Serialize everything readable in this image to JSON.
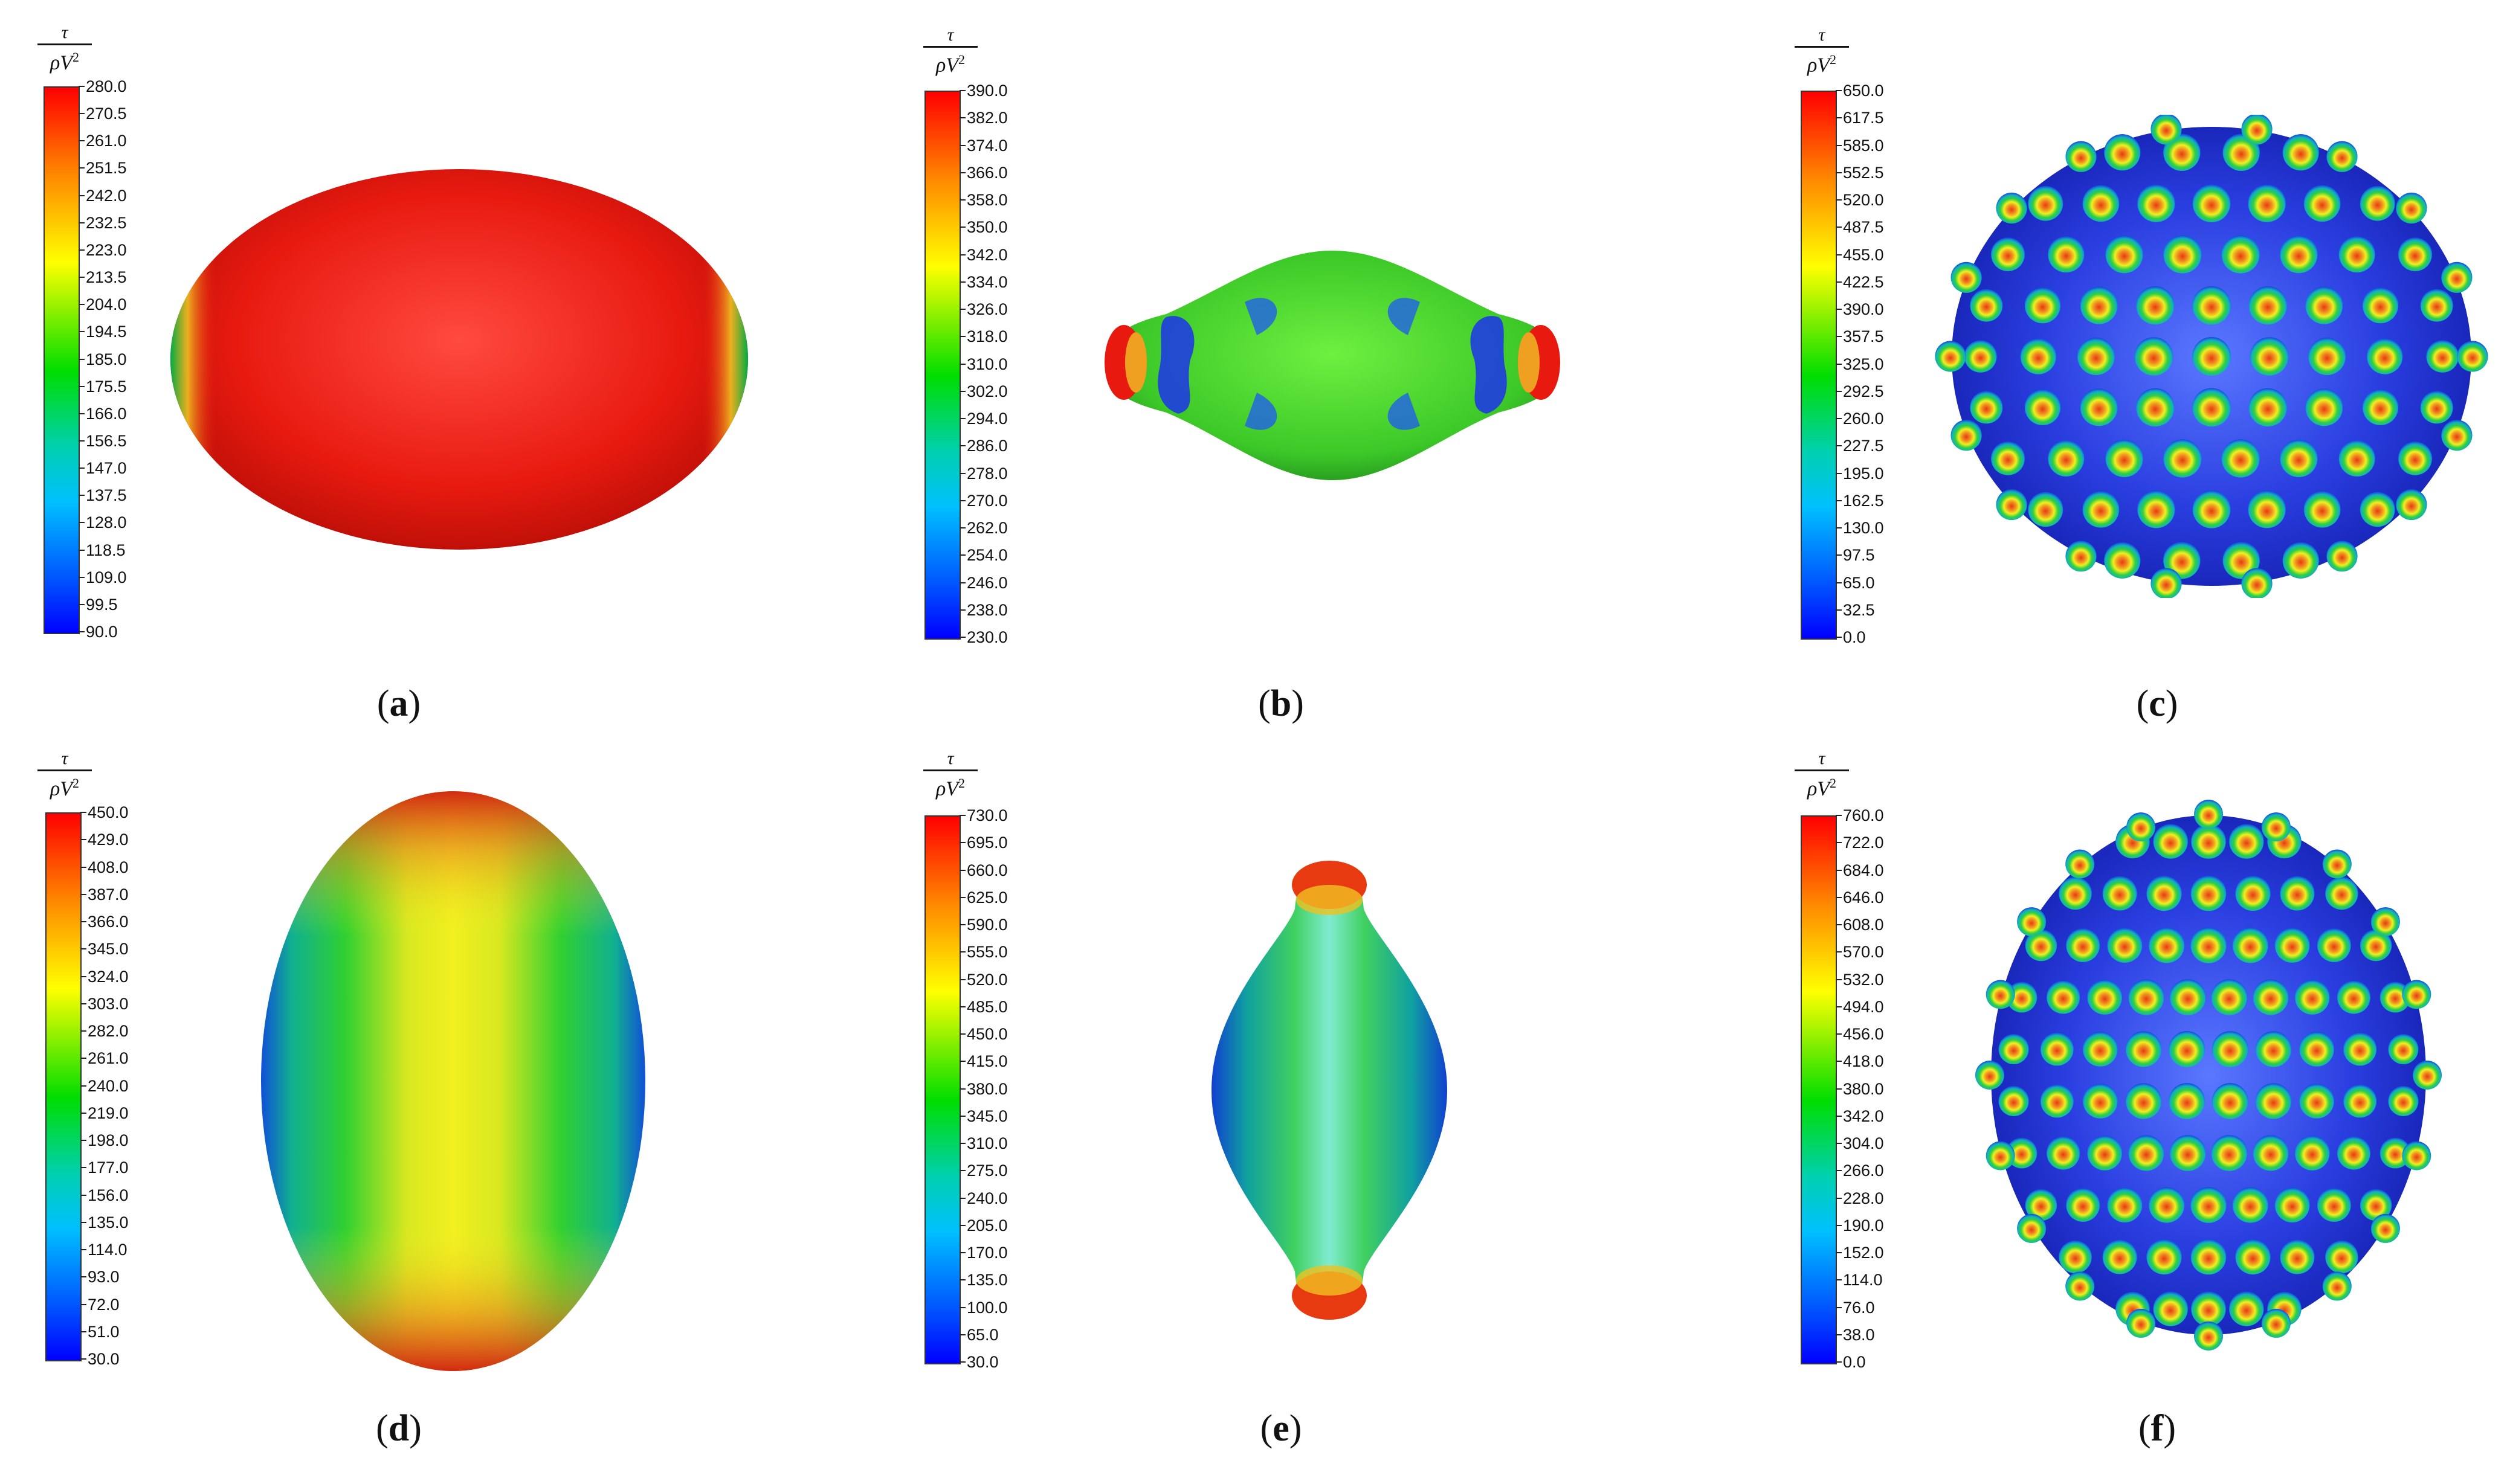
{
  "colorbar_label": {
    "numerator": "τ",
    "denominator": "ρV",
    "exponent": "2"
  },
  "panels": [
    {
      "id": "a",
      "caption": "a",
      "caption_open": "(",
      "caption_close": ")",
      "ticks": [
        "280.0",
        "270.5",
        "261.0",
        "251.5",
        "242.0",
        "232.5",
        "223.0",
        "213.5",
        "204.0",
        "194.5",
        "185.0",
        "175.5",
        "166.0",
        "156.5",
        "147.0",
        "137.5",
        "128.0",
        "118.5",
        "109.0",
        "99.5",
        "90.0"
      ],
      "range": [
        90.0,
        280.0
      ],
      "shape": "ellipse-horizontal",
      "dominant_color": "#e81a10"
    },
    {
      "id": "b",
      "caption": "b",
      "caption_open": "(",
      "caption_close": ")",
      "ticks": [
        "390.0",
        "382.0",
        "374.0",
        "366.0",
        "358.0",
        "350.0",
        "342.0",
        "334.0",
        "326.0",
        "318.0",
        "310.0",
        "302.0",
        "294.0",
        "286.0",
        "278.0",
        "270.0",
        "262.0",
        "254.0",
        "246.0",
        "238.0",
        "230.0"
      ],
      "range": [
        230.0,
        390.0
      ],
      "shape": "spindle-horizontal",
      "dominant_color": "#4cd62a"
    },
    {
      "id": "c",
      "caption": "c",
      "caption_open": "(",
      "caption_close": ")",
      "ticks": [
        "650.0",
        "617.5",
        "585.0",
        "552.5",
        "520.0",
        "487.5",
        "455.0",
        "422.5",
        "390.0",
        "357.5",
        "325.0",
        "292.5",
        "260.0",
        "227.5",
        "195.0",
        "162.5",
        "130.0",
        "97.5",
        "65.0",
        "32.5",
        "0.0"
      ],
      "range": [
        0.0,
        650.0
      ],
      "shape": "bumpy-sphere-wide",
      "dominant_color": "#2233dd"
    },
    {
      "id": "d",
      "caption": "d",
      "caption_open": "(",
      "caption_close": ")",
      "ticks": [
        "450.0",
        "429.0",
        "408.0",
        "387.0",
        "366.0",
        "345.0",
        "324.0",
        "303.0",
        "282.0",
        "261.0",
        "240.0",
        "219.0",
        "198.0",
        "177.0",
        "156.0",
        "135.0",
        "114.0",
        "93.0",
        "72.0",
        "51.0",
        "30.0"
      ],
      "range": [
        30.0,
        450.0
      ],
      "shape": "ellipse-vertical",
      "dominant_color": "#c8e020"
    },
    {
      "id": "e",
      "caption": "e",
      "caption_open": "(",
      "caption_close": ")",
      "ticks": [
        "730.0",
        "695.0",
        "660.0",
        "625.0",
        "590.0",
        "555.0",
        "520.0",
        "485.0",
        "450.0",
        "415.0",
        "380.0",
        "345.0",
        "310.0",
        "275.0",
        "240.0",
        "205.0",
        "170.0",
        "135.0",
        "100.0",
        "65.0",
        "30.0"
      ],
      "range": [
        30.0,
        730.0
      ],
      "shape": "spindle-vertical",
      "dominant_color": "#30c8a0"
    },
    {
      "id": "f",
      "caption": "f",
      "caption_open": "(",
      "caption_close": ")",
      "ticks": [
        "760.0",
        "722.0",
        "684.0",
        "646.0",
        "608.0",
        "570.0",
        "532.0",
        "494.0",
        "456.0",
        "418.0",
        "380.0",
        "342.0",
        "304.0",
        "266.0",
        "228.0",
        "190.0",
        "152.0",
        "114.0",
        "76.0",
        "38.0",
        "0.0"
      ],
      "range": [
        0.0,
        760.0
      ],
      "shape": "bumpy-sphere-tall",
      "dominant_color": "#2233dd"
    }
  ]
}
